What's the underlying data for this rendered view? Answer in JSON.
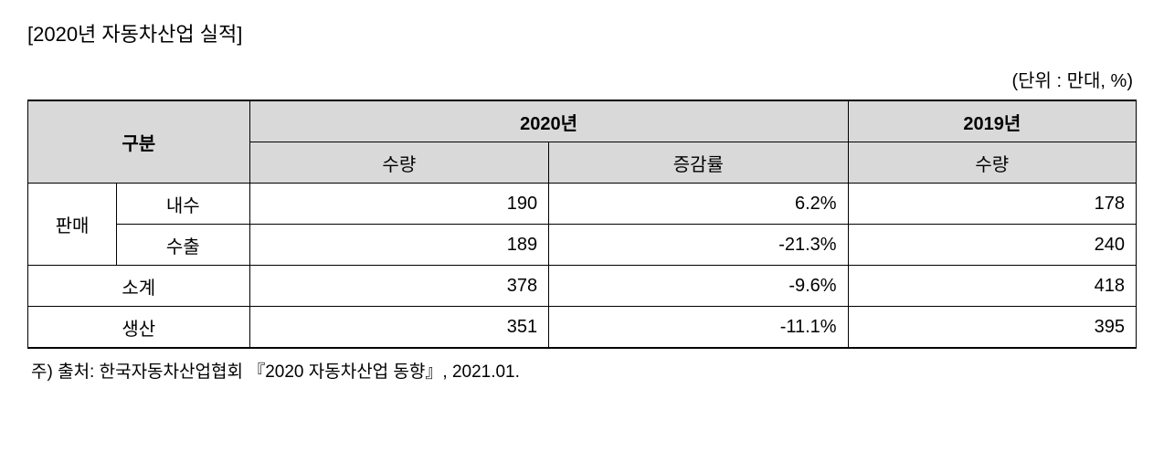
{
  "title": "[2020년 자동차산업 실적]",
  "unit": "(단위 : 만대, %)",
  "table": {
    "type": "table",
    "header_bg": "#d9d9d9",
    "border_color": "#000000",
    "col_group": "구분",
    "col_year2020": "2020년",
    "col_year2019": "2019년",
    "col_qty": "수량",
    "col_rate": "증감률",
    "rows": {
      "sales_group": "판매",
      "domestic": {
        "label": "내수",
        "qty2020": "190",
        "rate": "6.2%",
        "qty2019": "178"
      },
      "export": {
        "label": "수출",
        "qty2020": "189",
        "rate": "-21.3%",
        "qty2019": "240"
      },
      "subtotal": {
        "label": "소계",
        "qty2020": "378",
        "rate": "-9.6%",
        "qty2019": "418"
      },
      "production": {
        "label": "생산",
        "qty2020": "351",
        "rate": "-11.1%",
        "qty2019": "395"
      }
    }
  },
  "footnote": "주) 출처: 한국자동차산업협회 『2020 자동차산업 동향』, 2021.01."
}
